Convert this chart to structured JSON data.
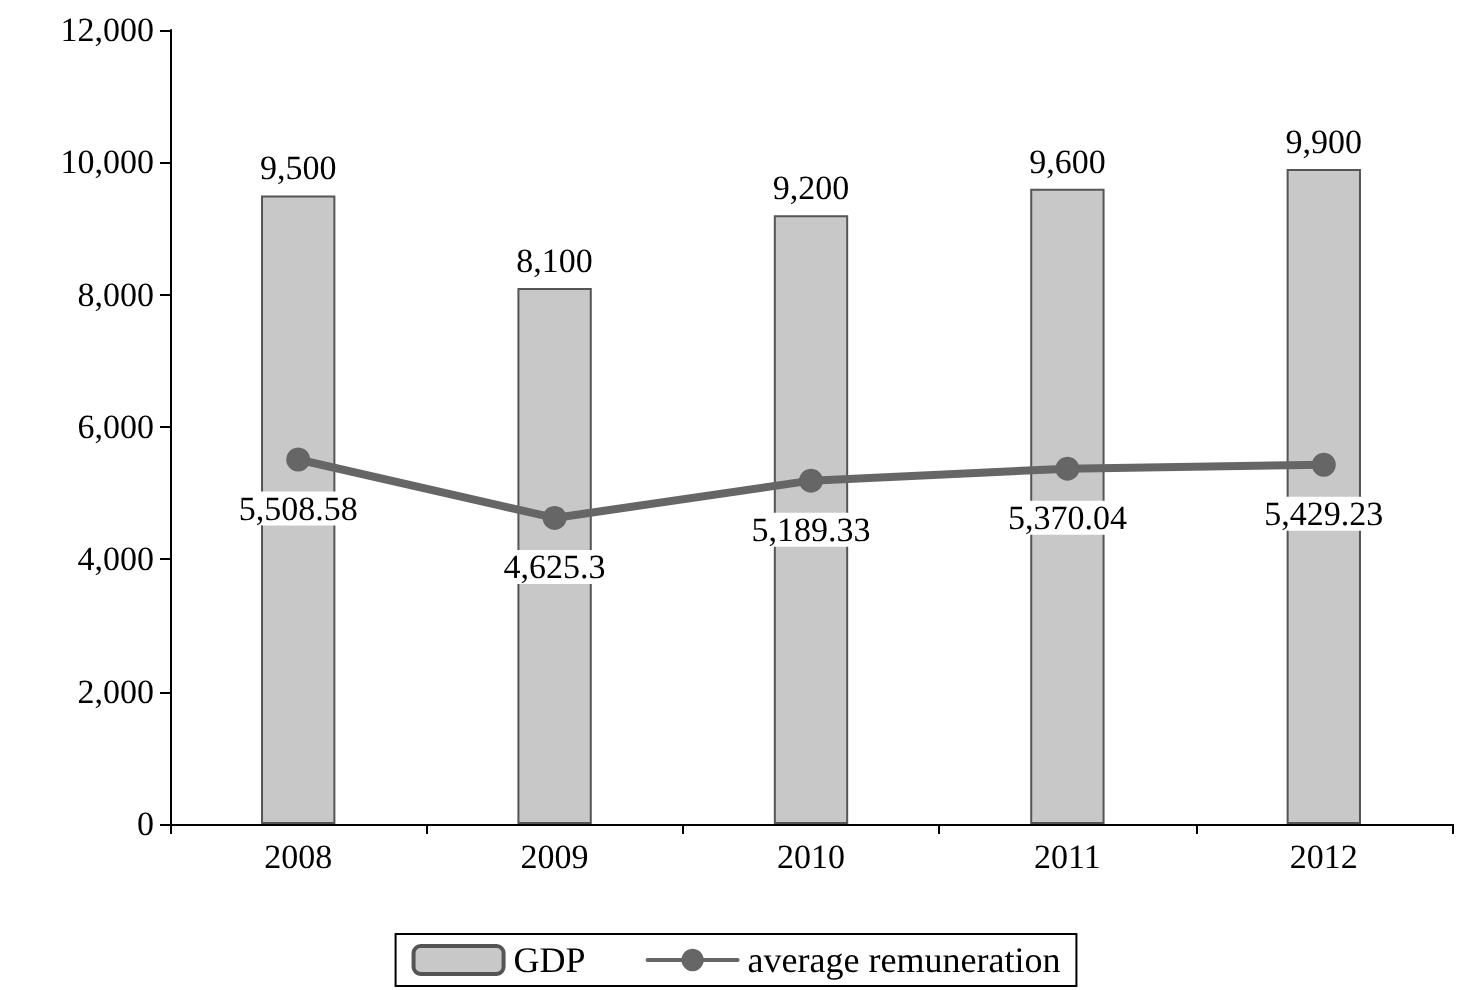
{
  "chart_data": {
    "type": "bar",
    "categories": [
      "2008",
      "2009",
      "2010",
      "2011",
      "2012"
    ],
    "series": [
      {
        "name": "GDP",
        "color": "#c8c8c8",
        "values": [
          9500,
          8100,
          9200,
          9600,
          9900
        ],
        "value_labels": [
          "9,500",
          "8,100",
          "9,200",
          "9,600",
          "9,900"
        ]
      },
      {
        "name": "average remuneration",
        "type": "line",
        "color": "#666666",
        "values": [
          5508.58,
          4625.3,
          5189.33,
          5370.04,
          5429.23
        ],
        "value_labels": [
          "5,508.58",
          "4,625.3",
          "5,189.33",
          "5,370.04",
          "5,429.23"
        ]
      }
    ],
    "ylim": [
      0,
      12000
    ],
    "yticks": [
      0,
      {
        "value": 2000,
        "label": "2,000"
      },
      {
        "value": 4000,
        "label": "4,000"
      },
      {
        "value": 6000,
        "label": "6,000"
      },
      {
        "value": 8000,
        "label": "8,000"
      },
      {
        "value": 10000,
        "label": "10,000"
      },
      {
        "value": 12000,
        "label": "12,000"
      }
    ],
    "grid": false,
    "legend": "bottom",
    "marker": "circle",
    "line_style": "solid"
  }
}
